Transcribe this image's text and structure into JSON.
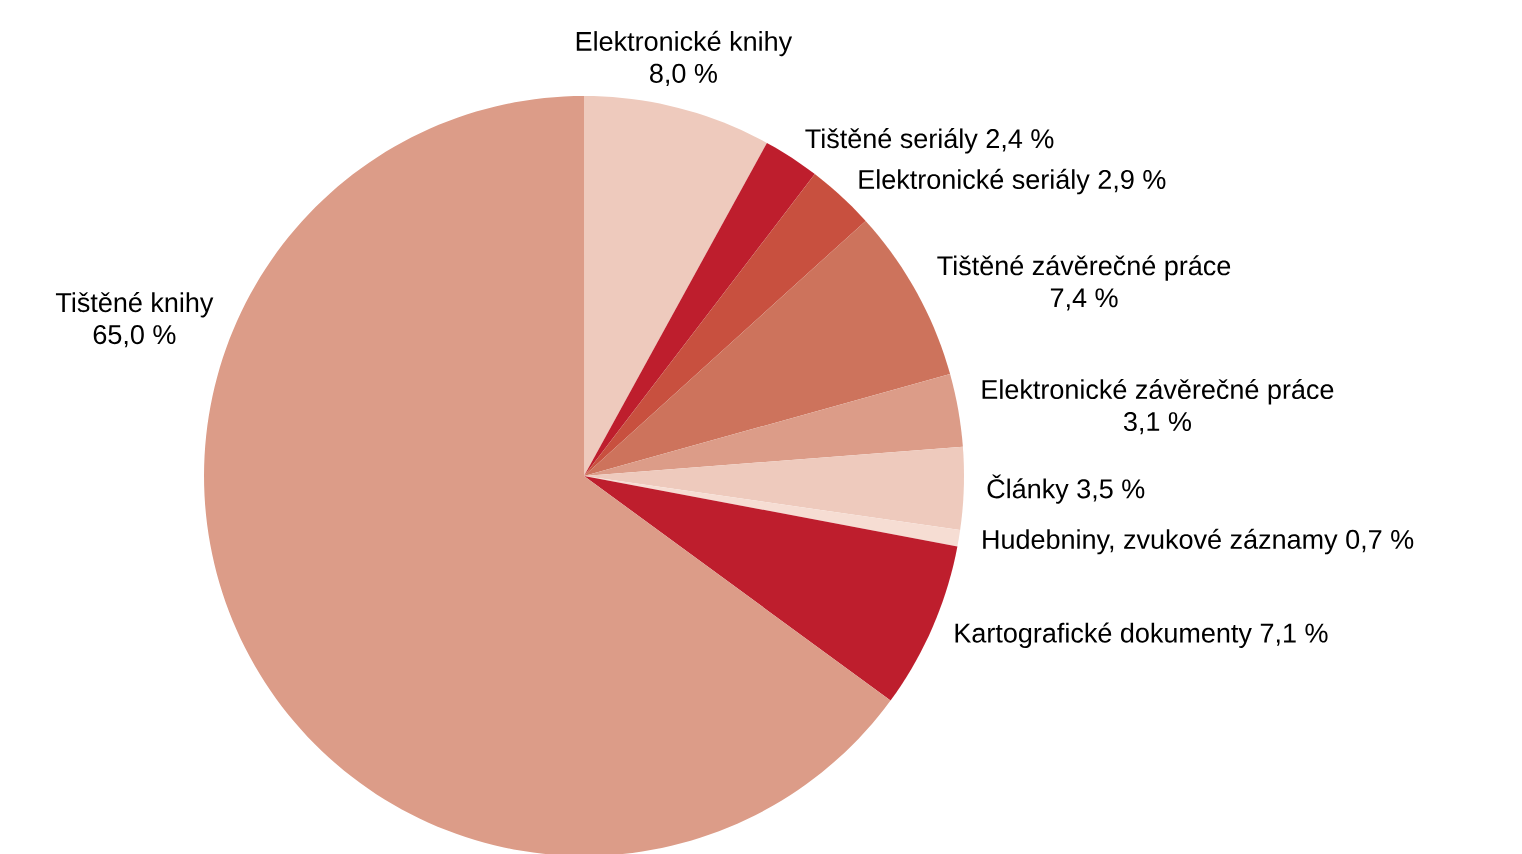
{
  "chart_data": {
    "type": "pie",
    "categories": [
      "Elektronické knihy",
      "Tištěné seriály",
      "Elektronické seriály",
      "Tištěné závěrečné práce",
      "Elektronické závěrečné práce",
      "Články",
      "Hudebniny, zvukové záznamy",
      "Kartografické dokumenty",
      "Tištěné knihy"
    ],
    "values": [
      8.0,
      2.4,
      2.9,
      7.4,
      3.1,
      3.5,
      0.7,
      7.1,
      65.0
    ],
    "value_labels": [
      "8,0 %",
      "2,4 %",
      "2,9 %",
      "7,4 %",
      "3,1 %",
      "3,5 %",
      "0,7 %",
      "7,1 %",
      "65,0 %"
    ],
    "colors": [
      "#eecabd",
      "#be1e2d",
      "#c8503f",
      "#cd735c",
      "#dc9c88",
      "#eecabd",
      "#f6ddd3",
      "#be1e2d",
      "#dc9c88"
    ]
  }
}
